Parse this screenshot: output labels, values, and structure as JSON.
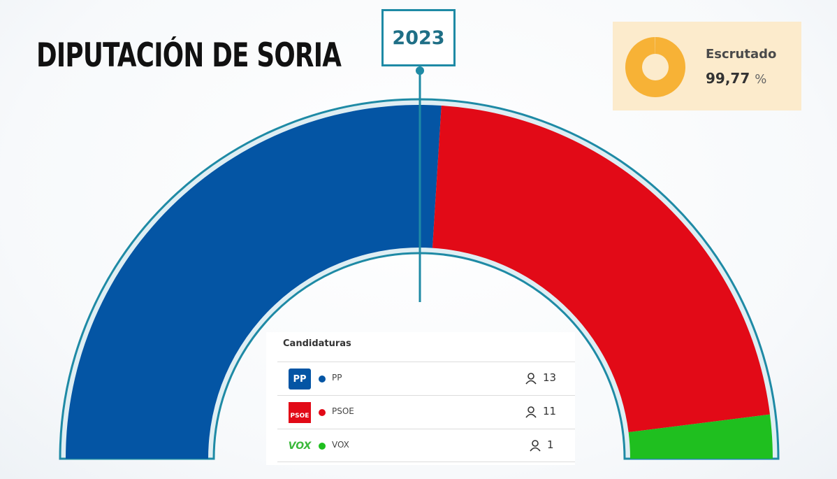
{
  "title": "DIPUTACIÓN DE SORIA",
  "year": "2023",
  "scrutiny": {
    "label": "Escrutado",
    "value": "99,77",
    "unit": "%",
    "fraction": 0.9977,
    "color": "#f7b236"
  },
  "candidatures": {
    "header": "Candidaturas",
    "rows": [
      {
        "name": "PP",
        "seats": "13",
        "color": "#0455a4",
        "logo": "PP",
        "icon": "pp-logo-icon"
      },
      {
        "name": "PSOE",
        "seats": "11",
        "color": "#e20a17",
        "logo": "PSOE",
        "icon": "psoe-logo-icon"
      },
      {
        "name": "VOX",
        "seats": "1",
        "color": "#1fbf1f",
        "logo": "VOX",
        "icon": "vox-logo-icon"
      }
    ]
  },
  "chart_data": {
    "type": "pie",
    "variant": "parliament-half-donut",
    "total_seats": 25,
    "series": [
      {
        "name": "PP",
        "values": [
          13
        ],
        "color": "#0455a4"
      },
      {
        "name": "PSOE",
        "values": [
          11
        ],
        "color": "#e20a17"
      },
      {
        "name": "VOX",
        "values": [
          1
        ],
        "color": "#1fbf1f"
      }
    ],
    "marker": "2023",
    "outline_color": "#1e8aa5"
  }
}
